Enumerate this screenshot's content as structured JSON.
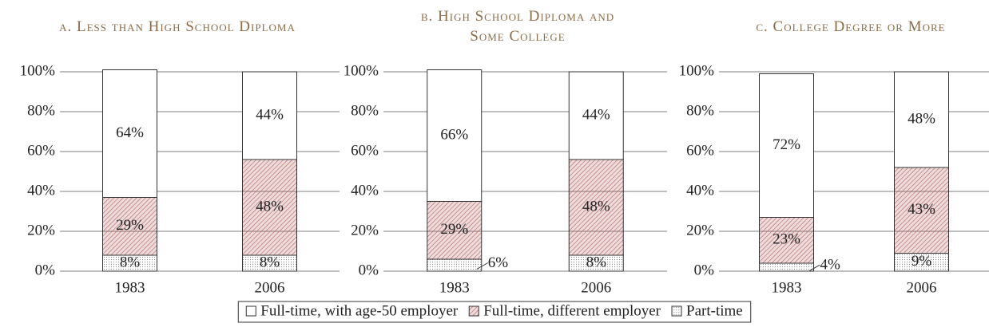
{
  "chart_data": [
    {
      "type": "bar",
      "stacked": true,
      "title": "a. Less than High School Diploma",
      "categories": [
        "1983",
        "2006"
      ],
      "ylim": [
        0,
        100
      ],
      "yticks": [
        {
          "value": 0,
          "label": "0%"
        },
        {
          "value": 20,
          "label": "20%"
        },
        {
          "value": 40,
          "label": "40%"
        },
        {
          "value": 60,
          "label": "60%"
        },
        {
          "value": 80,
          "label": "80%"
        },
        {
          "value": 100,
          "label": "100%"
        }
      ],
      "grid": true,
      "series": [
        {
          "name": "Part-time",
          "color": "#8a8a8a",
          "pattern": "dots",
          "values": [
            8,
            8
          ],
          "value_labels": [
            "8%",
            "8%"
          ]
        },
        {
          "name": "Full-time, different employer",
          "color": "#b0605e",
          "pattern": "hatch",
          "values": [
            29,
            48
          ],
          "value_labels": [
            "29%",
            "48%"
          ]
        },
        {
          "name": "Full-time, with age-50 employer",
          "color": "#ffffff",
          "pattern": "none",
          "values": [
            64,
            44
          ],
          "value_labels": [
            "64%",
            "44%"
          ]
        }
      ]
    },
    {
      "type": "bar",
      "stacked": true,
      "title": "b. High School Diploma and Some College",
      "categories": [
        "1983",
        "2006"
      ],
      "ylim": [
        0,
        100
      ],
      "yticks": [
        {
          "value": 0,
          "label": "0%"
        },
        {
          "value": 20,
          "label": "20%"
        },
        {
          "value": 40,
          "label": "40%"
        },
        {
          "value": 60,
          "label": "60%"
        },
        {
          "value": 80,
          "label": "80%"
        },
        {
          "value": 100,
          "label": "100%"
        }
      ],
      "grid": true,
      "series": [
        {
          "color": "#8a8a8a",
          "pattern": "dots",
          "values": [
            6,
            8
          ],
          "value_labels": [
            "6%",
            "8%"
          ]
        },
        {
          "color": "#b0605e",
          "pattern": "hatch",
          "values": [
            29,
            48
          ],
          "value_labels": [
            "29%",
            "48%"
          ]
        },
        {
          "color": "#ffffff",
          "pattern": "none",
          "values": [
            66,
            44
          ],
          "value_labels": [
            "66%",
            "44%"
          ]
        }
      ]
    },
    {
      "type": "bar",
      "stacked": true,
      "title": "c. College Degree or More",
      "categories": [
        "1983",
        "2006"
      ],
      "ylim": [
        0,
        100
      ],
      "yticks": [
        {
          "value": 0,
          "label": "0%"
        },
        {
          "value": 20,
          "label": "20%"
        },
        {
          "value": 40,
          "label": "40%"
        },
        {
          "value": 60,
          "label": "60%"
        },
        {
          "value": 80,
          "label": "80%"
        },
        {
          "value": 100,
          "label": "100%"
        }
      ],
      "grid": true,
      "series": [
        {
          "color": "#8a8a8a",
          "pattern": "dots",
          "values": [
            4,
            9
          ],
          "value_labels": [
            "4%",
            "9%"
          ]
        },
        {
          "color": "#b0605e",
          "pattern": "hatch",
          "values": [
            23,
            43
          ],
          "value_labels": [
            "23%",
            "43%"
          ]
        },
        {
          "color": "#ffffff",
          "pattern": "none",
          "values": [
            72,
            48
          ],
          "value_labels": [
            "72%",
            "48%"
          ]
        }
      ]
    }
  ]
}
